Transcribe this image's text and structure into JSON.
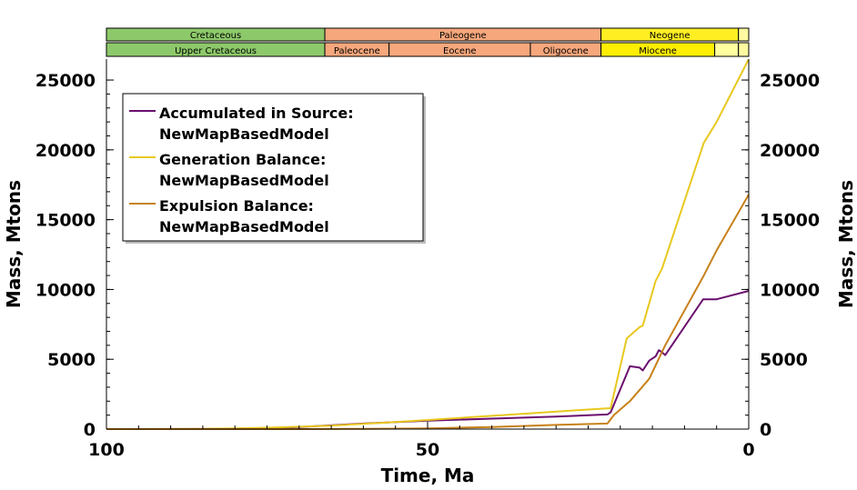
{
  "chart_data": {
    "type": "line",
    "xlabel": "Time, Ma",
    "ylabel_left": "Mass, Mtons",
    "ylabel_right": "Mass, Mtons",
    "xlim": [
      100,
      0
    ],
    "ylim": [
      0,
      26500
    ],
    "x_ticks": [
      100,
      50,
      0
    ],
    "y_ticks": [
      0,
      5000,
      10000,
      15000,
      20000,
      25000
    ],
    "grid": false,
    "legend_position": "top-left",
    "geologic_timescale": {
      "periods": [
        {
          "name": "Cretaceous",
          "start": 100,
          "end": 66,
          "color": "#8dc96a"
        },
        {
          "name": "Paleogene",
          "start": 66,
          "end": 23,
          "color": "#f7a77c"
        },
        {
          "name": "Neogene",
          "start": 23,
          "end": 1.6,
          "color": "#ffee22"
        },
        {
          "name": "",
          "start": 1.6,
          "end": 0,
          "color": "#fffaa0"
        }
      ],
      "epochs": [
        {
          "name": "Upper Cretaceous",
          "start": 100,
          "end": 66,
          "color": "#8dc96a"
        },
        {
          "name": "Paleocene",
          "start": 66,
          "end": 56,
          "color": "#f7a77c"
        },
        {
          "name": "Eocene",
          "start": 56,
          "end": 34,
          "color": "#f7a77c"
        },
        {
          "name": "Oligocene",
          "start": 34,
          "end": 23,
          "color": "#f7a77c"
        },
        {
          "name": "Miocene",
          "start": 23,
          "end": 5.3,
          "color": "#ffee00"
        },
        {
          "name": "",
          "start": 5.3,
          "end": 1.6,
          "color": "#ffffa0"
        },
        {
          "name": "",
          "start": 1.6,
          "end": 0,
          "color": "#fffaa0"
        }
      ]
    },
    "series": [
      {
        "name": "Accumulated in Source: NewMapBasedModel",
        "color": "#6a0f6e",
        "points": [
          [
            100,
            0
          ],
          [
            80,
            20
          ],
          [
            70,
            150
          ],
          [
            60,
            400
          ],
          [
            50,
            600
          ],
          [
            40,
            750
          ],
          [
            30,
            900
          ],
          [
            22,
            1050
          ],
          [
            21.5,
            1200
          ],
          [
            18.5,
            4500
          ],
          [
            17,
            4400
          ],
          [
            16.5,
            4200
          ],
          [
            15.5,
            4900
          ],
          [
            14.5,
            5200
          ],
          [
            14,
            5650
          ],
          [
            13.5,
            5500
          ],
          [
            13,
            5300
          ],
          [
            7.1,
            9300
          ],
          [
            5,
            9300
          ],
          [
            0,
            9900
          ]
        ]
      },
      {
        "name": "Generation Balance: NewMapBasedModel",
        "color": "#e8c81e",
        "points": [
          [
            100,
            0
          ],
          [
            85,
            10
          ],
          [
            75,
            100
          ],
          [
            65,
            250
          ],
          [
            55,
            500
          ],
          [
            45,
            800
          ],
          [
            35,
            1100
          ],
          [
            25,
            1400
          ],
          [
            21.5,
            1500
          ],
          [
            19,
            6500
          ],
          [
            17,
            7300
          ],
          [
            16.5,
            7400
          ],
          [
            14.5,
            10600
          ],
          [
            13.5,
            11500
          ],
          [
            7,
            20500
          ],
          [
            5,
            22000
          ],
          [
            0,
            26500
          ]
        ]
      },
      {
        "name": "Expulsion Balance: NewMapBasedModel",
        "color": "#c7811a",
        "points": [
          [
            100,
            0
          ],
          [
            70,
            0
          ],
          [
            60,
            20
          ],
          [
            50,
            50
          ],
          [
            40,
            150
          ],
          [
            30,
            300
          ],
          [
            22,
            400
          ],
          [
            21,
            1000
          ],
          [
            18.5,
            2000
          ],
          [
            15.5,
            3600
          ],
          [
            13,
            6000
          ],
          [
            7,
            11000
          ],
          [
            5,
            12800
          ],
          [
            0,
            16800
          ]
        ]
      }
    ]
  }
}
